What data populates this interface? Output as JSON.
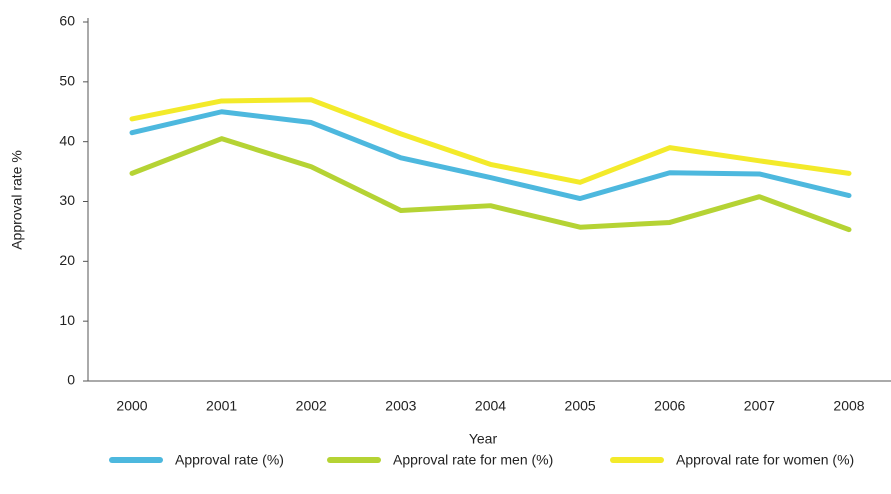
{
  "chart_data": {
    "type": "line",
    "x_label": "Year",
    "y_label": "Approval rate %",
    "categories": [
      "2000",
      "2001",
      "2002",
      "2003",
      "2004",
      "2005",
      "2006",
      "2007",
      "2008"
    ],
    "series": [
      {
        "name": "Approval rate (%)",
        "color": "#4db8de",
        "values": [
          41.5,
          45,
          43.2,
          37.3,
          34,
          30.5,
          34.8,
          34.6,
          31
        ]
      },
      {
        "name": "Approval rate for men (%)",
        "color": "#b5d334",
        "values": [
          34.7,
          40.5,
          35.8,
          28.5,
          29.3,
          25.7,
          26.5,
          30.8,
          25.3
        ]
      },
      {
        "name": "Approval rate for women (%)",
        "color": "#f3ea2a",
        "values": [
          43.8,
          46.8,
          47,
          41.3,
          36.2,
          33.2,
          39,
          36.8,
          34.7
        ]
      }
    ],
    "ylim": [
      0,
      60
    ],
    "yticks": [
      0,
      10,
      20,
      30,
      40,
      50,
      60
    ],
    "grid": false,
    "legend": "bottom"
  }
}
